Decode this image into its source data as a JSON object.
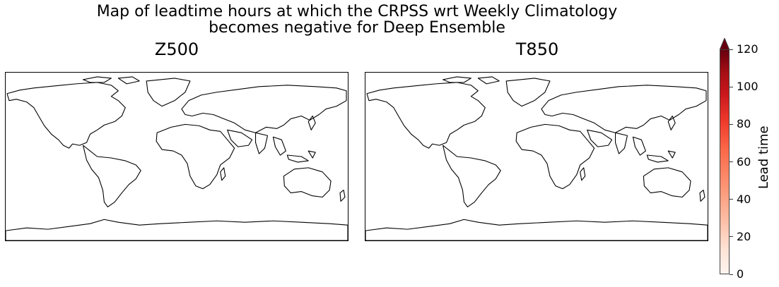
{
  "figure": {
    "title_line1": "Map of leadtime hours at which the CRPSS wrt Weekly Climatology",
    "title_line2": "becomes negative for Deep Ensemble"
  },
  "panels": [
    {
      "title": "Z500"
    },
    {
      "title": "T850"
    }
  ],
  "colorbar": {
    "label": "Lead time",
    "ticks": [
      "0",
      "20",
      "40",
      "60",
      "80",
      "100",
      "120"
    ],
    "range": [
      0,
      120
    ],
    "colormap": "Reds",
    "extend": "max",
    "colors": [
      "#fff5f0",
      "#fcbba1",
      "#fb6a4a",
      "#cb181d",
      "#67000d"
    ]
  },
  "chart_data": {
    "type": "heatmap",
    "title": "Map of leadtime hours at which the CRPSS wrt Weekly Climatology becomes negative for Deep Ensemble",
    "panels": [
      "Z500",
      "T850"
    ],
    "colorbar_label": "Lead time",
    "colorbar_range": [
      0,
      120
    ],
    "colorbar_ticks": [
      0,
      20,
      40,
      60,
      80,
      100,
      120
    ],
    "values": []
  }
}
